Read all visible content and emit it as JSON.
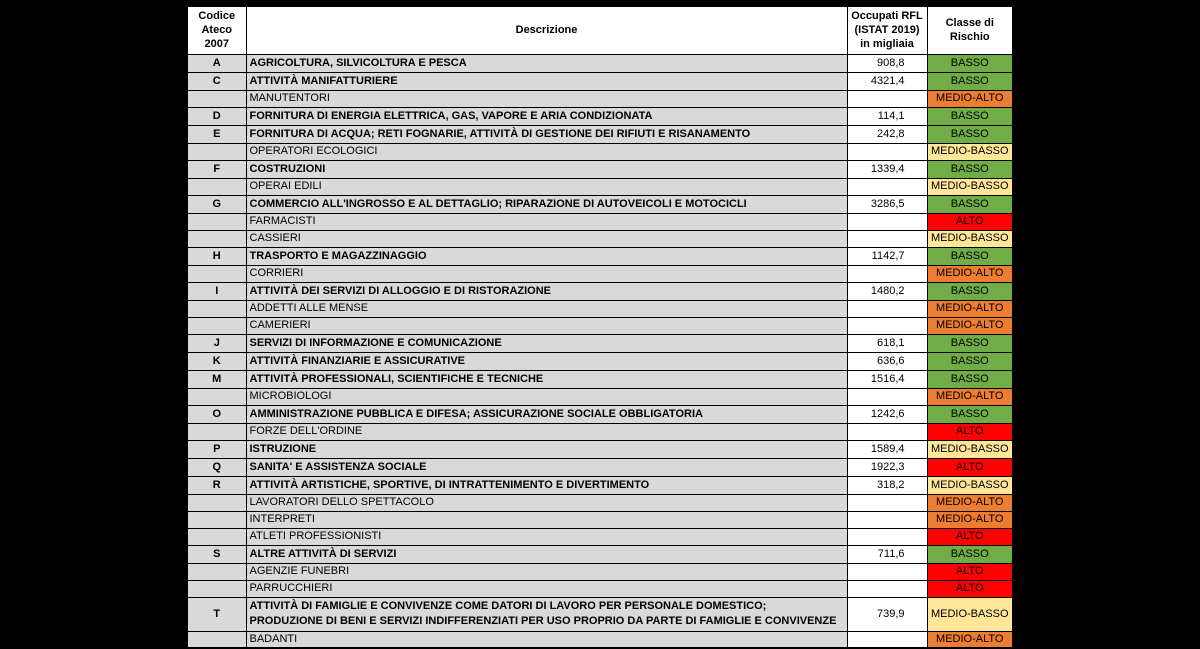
{
  "page": {
    "background": "#000000"
  },
  "table": {
    "headers": {
      "codice": {
        "line1": "Codice",
        "line2": "Ateco",
        "line3": "2007"
      },
      "descrizione": {
        "line1": "Descrizione"
      },
      "occupati": {
        "line1": "Occupati RFL",
        "line2": "(ISTAT 2019)",
        "line3": "in migliaia"
      },
      "classe": {
        "line1": "Classe di",
        "line2": "Rischio"
      }
    },
    "risk_colors": {
      "BASSO": "#70AD47",
      "MEDIO-BASSO": "#FFE699",
      "MEDIO-ALTO": "#ED7D31",
      "ALTO": "#FF0000"
    },
    "shading": {
      "row_gray": "#D9D9D9",
      "cell_white": "#FFFFFF",
      "border": "#000000"
    },
    "rows": [
      {
        "codice": "A",
        "descrizione": "AGRICOLTURA, SILVICOLTURA E PESCA",
        "occupati": "908,8",
        "classe": "BASSO",
        "category": true
      },
      {
        "codice": "C",
        "descrizione": "ATTIVITÀ MANIFATTURIERE",
        "occupati": "4321,4",
        "classe": "BASSO",
        "category": true
      },
      {
        "codice": "",
        "descrizione": "MANUTENTORI",
        "occupati": "",
        "classe": "MEDIO-ALTO"
      },
      {
        "codice": "D",
        "descrizione": "FORNITURA DI ENERGIA ELETTRICA, GAS, VAPORE E ARIA CONDIZIONATA",
        "occupati": "114,1",
        "classe": "BASSO",
        "category": true
      },
      {
        "codice": "E",
        "descrizione": "FORNITURA DI ACQUA; RETI FOGNARIE, ATTIVITÀ DI GESTIONE DEI RIFIUTI E RISANAMENTO",
        "occupati": "242,8",
        "classe": "BASSO",
        "category": true
      },
      {
        "codice": "",
        "descrizione": "OPERATORI ECOLOGICI",
        "occupati": "",
        "classe": "MEDIO-BASSO"
      },
      {
        "codice": "F",
        "descrizione": "COSTRUZIONI",
        "occupati": "1339,4",
        "classe": "BASSO",
        "category": true
      },
      {
        "codice": "",
        "descrizione": "OPERAI EDILI",
        "occupati": "",
        "classe": "MEDIO-BASSO"
      },
      {
        "codice": "G",
        "descrizione": "COMMERCIO ALL'INGROSSO E AL DETTAGLIO; RIPARAZIONE DI AUTOVEICOLI E MOTOCICLI",
        "occupati": "3286,5",
        "classe": "BASSO",
        "category": true
      },
      {
        "codice": "",
        "descrizione": "FARMACISTI",
        "occupati": "",
        "classe": "ALTO"
      },
      {
        "codice": "",
        "descrizione": "CASSIERI",
        "occupati": "",
        "classe": "MEDIO-BASSO"
      },
      {
        "codice": "H",
        "descrizione": "TRASPORTO E MAGAZZINAGGIO",
        "occupati": "1142,7",
        "classe": "BASSO",
        "category": true
      },
      {
        "codice": "",
        "descrizione": "CORRIERI",
        "occupati": "",
        "classe": "MEDIO-ALTO"
      },
      {
        "codice": "I",
        "descrizione": "ATTIVITÀ DEI SERVIZI DI ALLOGGIO E DI RISTORAZIONE",
        "occupati": "1480,2",
        "classe": "BASSO",
        "category": true
      },
      {
        "codice": "",
        "descrizione": "ADDETTI ALLE MENSE",
        "occupati": "",
        "classe": "MEDIO-ALTO"
      },
      {
        "codice": "",
        "descrizione": "CAMERIERI",
        "occupati": "",
        "classe": "MEDIO-ALTO"
      },
      {
        "codice": "J",
        "descrizione": "SERVIZI DI INFORMAZIONE E COMUNICAZIONE",
        "occupati": "618,1",
        "classe": "BASSO",
        "category": true
      },
      {
        "codice": "K",
        "descrizione": "ATTIVITÀ FINANZIARIE E ASSICURATIVE",
        "occupati": "636,6",
        "classe": "BASSO",
        "category": true
      },
      {
        "codice": "M",
        "descrizione": "ATTIVITÀ PROFESSIONALI, SCIENTIFICHE E TECNICHE",
        "occupati": "1516,4",
        "classe": "BASSO",
        "category": true
      },
      {
        "codice": "",
        "descrizione": "MICROBIOLOGI",
        "occupati": "",
        "classe": "MEDIO-ALTO"
      },
      {
        "codice": "O",
        "descrizione": "AMMINISTRAZIONE PUBBLICA E DIFESA; ASSICURAZIONE SOCIALE OBBLIGATORIA",
        "occupati": "1242,6",
        "classe": "BASSO",
        "category": true
      },
      {
        "codice": "",
        "descrizione": "FORZE DELL'ORDINE",
        "occupati": "",
        "classe": "ALTO"
      },
      {
        "codice": "P",
        "descrizione": "ISTRUZIONE",
        "occupati": "1589,4",
        "classe": "MEDIO-BASSO",
        "category": true
      },
      {
        "codice": "Q",
        "descrizione": "SANITA' E ASSISTENZA SOCIALE",
        "occupati": "1922,3",
        "classe": "ALTO",
        "category": true
      },
      {
        "codice": "R",
        "descrizione": "ATTIVITÀ ARTISTICHE, SPORTIVE, DI INTRATTENIMENTO E DIVERTIMENTO",
        "occupati": "318,2",
        "classe": "MEDIO-BASSO",
        "category": true
      },
      {
        "codice": "",
        "descrizione": "LAVORATORI DELLO SPETTACOLO",
        "occupati": "",
        "classe": "MEDIO-ALTO"
      },
      {
        "codice": "",
        "descrizione": "INTERPRETI",
        "occupati": "",
        "classe": "MEDIO-ALTO"
      },
      {
        "codice": "",
        "descrizione": "ATLETI PROFESSIONISTI",
        "occupati": "",
        "classe": "ALTO"
      },
      {
        "codice": "S",
        "descrizione": "ALTRE ATTIVITÀ DI SERVIZI",
        "occupati": "711,6",
        "classe": "BASSO",
        "category": true
      },
      {
        "codice": "",
        "descrizione": "AGENZIE FUNEBRI",
        "occupati": "",
        "classe": "ALTO"
      },
      {
        "codice": "",
        "descrizione": "PARRUCCHIERI",
        "occupati": "",
        "classe": "ALTO"
      },
      {
        "codice": "T",
        "descrizione": "ATTIVITÀ DI FAMIGLIE E CONVIVENZE COME DATORI DI LAVORO PER PERSONALE DOMESTICO; PRODUZIONE DI BENI E SERVIZI INDIFFERENZIATI PER USO PROPRIO DA PARTE DI FAMIGLIE E CONVIVENZE",
        "occupati": "739,9",
        "classe": "MEDIO-BASSO",
        "category": true,
        "tall": true
      },
      {
        "codice": "",
        "descrizione": "BADANTI",
        "occupati": "",
        "classe": "MEDIO-ALTO"
      }
    ]
  }
}
